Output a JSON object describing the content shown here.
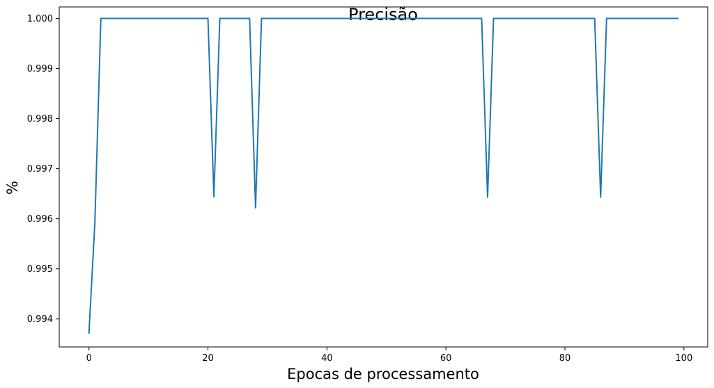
{
  "chart_data": {
    "type": "line",
    "title": "Precisão",
    "xlabel": "Epocas de processamento",
    "ylabel": "%",
    "xlim": [
      -5,
      104
    ],
    "ylim": [
      0.99344,
      1.00023
    ],
    "xticks": [
      0,
      20,
      40,
      60,
      80,
      100
    ],
    "xtick_labels": [
      "0",
      "20",
      "40",
      "60",
      "80",
      "100"
    ],
    "yticks": [
      0.994,
      0.995,
      0.996,
      0.997,
      0.998,
      0.999,
      1.0
    ],
    "ytick_labels": [
      "0.994",
      "0.995",
      "0.996",
      "0.997",
      "0.998",
      "0.999",
      "1.000"
    ],
    "grid": false,
    "series": [
      {
        "color": "#1f77b4",
        "x": [
          0,
          1,
          2,
          20,
          21,
          22,
          27,
          28,
          29,
          66,
          67,
          68,
          85,
          86,
          87,
          99
        ],
        "y": [
          0.99372,
          0.99594,
          1.0,
          1.0,
          0.99644,
          1.0,
          1.0,
          0.99622,
          1.0,
          1.0,
          0.99643,
          1.0,
          1.0,
          0.99643,
          1.0,
          1.0
        ]
      }
    ]
  }
}
